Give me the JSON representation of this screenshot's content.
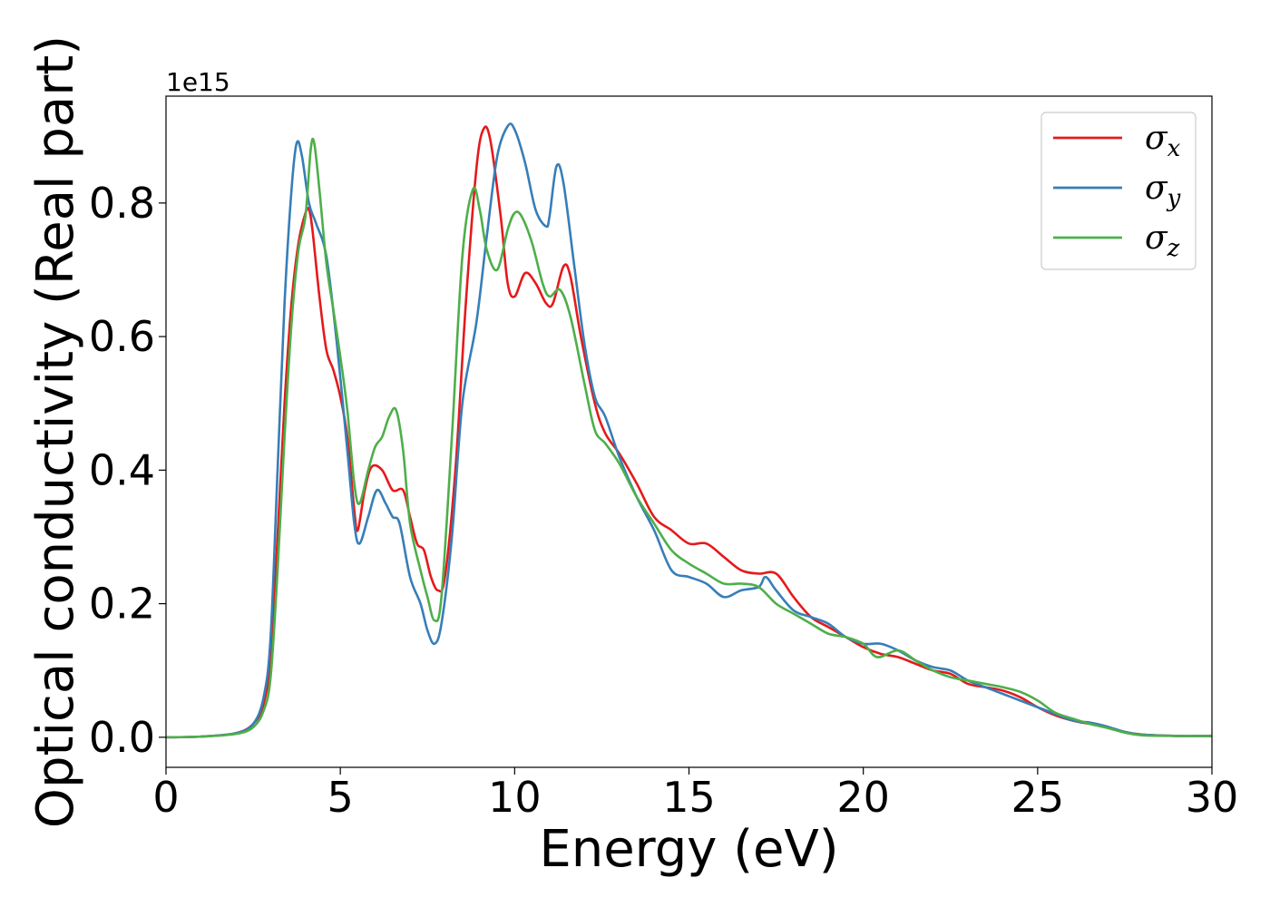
{
  "chart_data": {
    "type": "line",
    "xlabel": "Energy (eV)",
    "ylabel": "Optical conductivity (Real part)",
    "y_offset_label": "1e15",
    "xlim": [
      0,
      30
    ],
    "ylim": [
      -0.045,
      0.96
    ],
    "x_ticks": [
      0,
      5,
      10,
      15,
      20,
      25,
      30
    ],
    "y_ticks": [
      0.0,
      0.2,
      0.4,
      0.6,
      0.8
    ],
    "x_tick_labels": [
      "0",
      "5",
      "10",
      "15",
      "20",
      "25",
      "30"
    ],
    "y_tick_labels": [
      "0.0",
      "0.2",
      "0.4",
      "0.6",
      "0.8"
    ],
    "grid": false,
    "legend_position": "top-right",
    "series": [
      {
        "name": "σx",
        "symbol": "σ",
        "subscript": "x",
        "color": "#e41a1c",
        "points": [
          [
            0,
            0
          ],
          [
            1,
            0.001
          ],
          [
            2,
            0.006
          ],
          [
            2.5,
            0.02
          ],
          [
            2.8,
            0.05
          ],
          [
            3.0,
            0.12
          ],
          [
            3.2,
            0.3
          ],
          [
            3.4,
            0.5
          ],
          [
            3.6,
            0.65
          ],
          [
            3.8,
            0.74
          ],
          [
            4.0,
            0.785
          ],
          [
            4.1,
            0.79
          ],
          [
            4.2,
            0.76
          ],
          [
            4.4,
            0.66
          ],
          [
            4.6,
            0.58
          ],
          [
            4.8,
            0.55
          ],
          [
            5.0,
            0.51
          ],
          [
            5.2,
            0.45
          ],
          [
            5.4,
            0.34
          ],
          [
            5.5,
            0.31
          ],
          [
            5.7,
            0.37
          ],
          [
            5.9,
            0.405
          ],
          [
            6.2,
            0.4
          ],
          [
            6.5,
            0.37
          ],
          [
            6.8,
            0.37
          ],
          [
            7.0,
            0.33
          ],
          [
            7.2,
            0.29
          ],
          [
            7.4,
            0.28
          ],
          [
            7.6,
            0.24
          ],
          [
            7.8,
            0.22
          ],
          [
            8.0,
            0.24
          ],
          [
            8.3,
            0.4
          ],
          [
            8.6,
            0.65
          ],
          [
            8.9,
            0.85
          ],
          [
            9.1,
            0.91
          ],
          [
            9.3,
            0.895
          ],
          [
            9.6,
            0.78
          ],
          [
            9.8,
            0.68
          ],
          [
            10.0,
            0.66
          ],
          [
            10.3,
            0.695
          ],
          [
            10.6,
            0.68
          ],
          [
            10.9,
            0.65
          ],
          [
            11.1,
            0.65
          ],
          [
            11.4,
            0.705
          ],
          [
            11.6,
            0.69
          ],
          [
            11.9,
            0.6
          ],
          [
            12.3,
            0.5
          ],
          [
            12.6,
            0.455
          ],
          [
            13.0,
            0.425
          ],
          [
            13.5,
            0.38
          ],
          [
            14.0,
            0.33
          ],
          [
            14.5,
            0.31
          ],
          [
            15.0,
            0.29
          ],
          [
            15.5,
            0.29
          ],
          [
            16.0,
            0.27
          ],
          [
            16.5,
            0.25
          ],
          [
            17.0,
            0.245
          ],
          [
            17.5,
            0.245
          ],
          [
            18.0,
            0.21
          ],
          [
            18.5,
            0.18
          ],
          [
            19.0,
            0.165
          ],
          [
            19.5,
            0.15
          ],
          [
            20.0,
            0.135
          ],
          [
            20.5,
            0.125
          ],
          [
            21.0,
            0.12
          ],
          [
            21.5,
            0.11
          ],
          [
            22.0,
            0.1
          ],
          [
            22.5,
            0.095
          ],
          [
            23.0,
            0.08
          ],
          [
            23.5,
            0.075
          ],
          [
            24.0,
            0.07
          ],
          [
            24.5,
            0.06
          ],
          [
            25.0,
            0.045
          ],
          [
            25.5,
            0.033
          ],
          [
            26.0,
            0.025
          ],
          [
            26.5,
            0.02
          ],
          [
            27.0,
            0.015
          ],
          [
            27.5,
            0.008
          ],
          [
            28.0,
            0.004
          ],
          [
            29.0,
            0.002
          ],
          [
            30.0,
            0.002
          ]
        ]
      },
      {
        "name": "σy",
        "symbol": "σ",
        "subscript": "y",
        "color": "#377eb8",
        "points": [
          [
            0,
            0
          ],
          [
            1,
            0.001
          ],
          [
            2,
            0.006
          ],
          [
            2.5,
            0.02
          ],
          [
            2.8,
            0.06
          ],
          [
            3.0,
            0.15
          ],
          [
            3.2,
            0.4
          ],
          [
            3.4,
            0.65
          ],
          [
            3.6,
            0.82
          ],
          [
            3.75,
            0.89
          ],
          [
            3.9,
            0.87
          ],
          [
            4.1,
            0.8
          ],
          [
            4.3,
            0.77
          ],
          [
            4.6,
            0.72
          ],
          [
            4.9,
            0.59
          ],
          [
            5.2,
            0.43
          ],
          [
            5.4,
            0.32
          ],
          [
            5.55,
            0.29
          ],
          [
            5.8,
            0.33
          ],
          [
            6.05,
            0.37
          ],
          [
            6.3,
            0.35
          ],
          [
            6.5,
            0.33
          ],
          [
            6.7,
            0.32
          ],
          [
            7.0,
            0.24
          ],
          [
            7.3,
            0.2
          ],
          [
            7.5,
            0.16
          ],
          [
            7.7,
            0.14
          ],
          [
            7.9,
            0.17
          ],
          [
            8.2,
            0.3
          ],
          [
            8.5,
            0.5
          ],
          [
            8.9,
            0.62
          ],
          [
            9.2,
            0.75
          ],
          [
            9.5,
            0.87
          ],
          [
            9.8,
            0.915
          ],
          [
            10.0,
            0.91
          ],
          [
            10.3,
            0.86
          ],
          [
            10.6,
            0.79
          ],
          [
            10.9,
            0.765
          ],
          [
            11.0,
            0.78
          ],
          [
            11.2,
            0.855
          ],
          [
            11.4,
            0.83
          ],
          [
            11.7,
            0.71
          ],
          [
            12.0,
            0.59
          ],
          [
            12.3,
            0.51
          ],
          [
            12.6,
            0.48
          ],
          [
            13.0,
            0.42
          ],
          [
            13.5,
            0.36
          ],
          [
            14.0,
            0.31
          ],
          [
            14.5,
            0.25
          ],
          [
            15.0,
            0.24
          ],
          [
            15.5,
            0.23
          ],
          [
            16.0,
            0.21
          ],
          [
            16.5,
            0.22
          ],
          [
            17.0,
            0.225
          ],
          [
            17.2,
            0.24
          ],
          [
            17.5,
            0.22
          ],
          [
            18.0,
            0.19
          ],
          [
            18.5,
            0.18
          ],
          [
            19.0,
            0.17
          ],
          [
            19.5,
            0.15
          ],
          [
            20.0,
            0.14
          ],
          [
            20.5,
            0.14
          ],
          [
            21.0,
            0.13
          ],
          [
            21.5,
            0.115
          ],
          [
            22.0,
            0.105
          ],
          [
            22.5,
            0.1
          ],
          [
            23.0,
            0.085
          ],
          [
            23.5,
            0.075
          ],
          [
            24.0,
            0.065
          ],
          [
            24.5,
            0.055
          ],
          [
            25.0,
            0.045
          ],
          [
            25.5,
            0.035
          ],
          [
            26.0,
            0.025
          ],
          [
            26.5,
            0.022
          ],
          [
            27.0,
            0.016
          ],
          [
            27.5,
            0.008
          ],
          [
            28.0,
            0.004
          ],
          [
            29.0,
            0.002
          ],
          [
            30.0,
            0.002
          ]
        ]
      },
      {
        "name": "σz",
        "symbol": "σ",
        "subscript": "z",
        "color": "#4daf4a",
        "points": [
          [
            0,
            0
          ],
          [
            1,
            0.001
          ],
          [
            2,
            0.005
          ],
          [
            2.5,
            0.015
          ],
          [
            2.8,
            0.04
          ],
          [
            3.0,
            0.09
          ],
          [
            3.2,
            0.25
          ],
          [
            3.4,
            0.45
          ],
          [
            3.6,
            0.62
          ],
          [
            3.8,
            0.73
          ],
          [
            4.0,
            0.78
          ],
          [
            4.15,
            0.88
          ],
          [
            4.25,
            0.89
          ],
          [
            4.4,
            0.82
          ],
          [
            4.6,
            0.71
          ],
          [
            4.8,
            0.64
          ],
          [
            5.0,
            0.57
          ],
          [
            5.2,
            0.49
          ],
          [
            5.4,
            0.38
          ],
          [
            5.55,
            0.35
          ],
          [
            5.8,
            0.4
          ],
          [
            6.0,
            0.435
          ],
          [
            6.2,
            0.45
          ],
          [
            6.4,
            0.48
          ],
          [
            6.6,
            0.49
          ],
          [
            6.8,
            0.43
          ],
          [
            7.0,
            0.32
          ],
          [
            7.3,
            0.25
          ],
          [
            7.5,
            0.21
          ],
          [
            7.7,
            0.175
          ],
          [
            7.9,
            0.21
          ],
          [
            8.2,
            0.45
          ],
          [
            8.5,
            0.72
          ],
          [
            8.8,
            0.82
          ],
          [
            9.0,
            0.79
          ],
          [
            9.2,
            0.73
          ],
          [
            9.5,
            0.7
          ],
          [
            9.8,
            0.76
          ],
          [
            10.0,
            0.785
          ],
          [
            10.2,
            0.78
          ],
          [
            10.5,
            0.74
          ],
          [
            10.8,
            0.68
          ],
          [
            11.0,
            0.66
          ],
          [
            11.3,
            0.67
          ],
          [
            11.6,
            0.63
          ],
          [
            12.0,
            0.53
          ],
          [
            12.3,
            0.46
          ],
          [
            12.6,
            0.44
          ],
          [
            13.0,
            0.41
          ],
          [
            13.5,
            0.36
          ],
          [
            14.0,
            0.32
          ],
          [
            14.5,
            0.28
          ],
          [
            15.0,
            0.26
          ],
          [
            15.5,
            0.245
          ],
          [
            16.0,
            0.23
          ],
          [
            16.5,
            0.23
          ],
          [
            17.0,
            0.225
          ],
          [
            17.5,
            0.2
          ],
          [
            18.0,
            0.185
          ],
          [
            18.5,
            0.17
          ],
          [
            19.0,
            0.155
          ],
          [
            19.5,
            0.15
          ],
          [
            20.0,
            0.14
          ],
          [
            20.4,
            0.12
          ],
          [
            21.0,
            0.13
          ],
          [
            21.5,
            0.115
          ],
          [
            22.0,
            0.1
          ],
          [
            22.5,
            0.09
          ],
          [
            23.0,
            0.085
          ],
          [
            23.5,
            0.08
          ],
          [
            24.0,
            0.075
          ],
          [
            24.5,
            0.068
          ],
          [
            25.0,
            0.055
          ],
          [
            25.5,
            0.037
          ],
          [
            26.0,
            0.028
          ],
          [
            26.5,
            0.02
          ],
          [
            27.0,
            0.014
          ],
          [
            27.5,
            0.007
          ],
          [
            28.0,
            0.003
          ],
          [
            29.0,
            0.002
          ],
          [
            30.0,
            0.002
          ]
        ]
      }
    ]
  }
}
